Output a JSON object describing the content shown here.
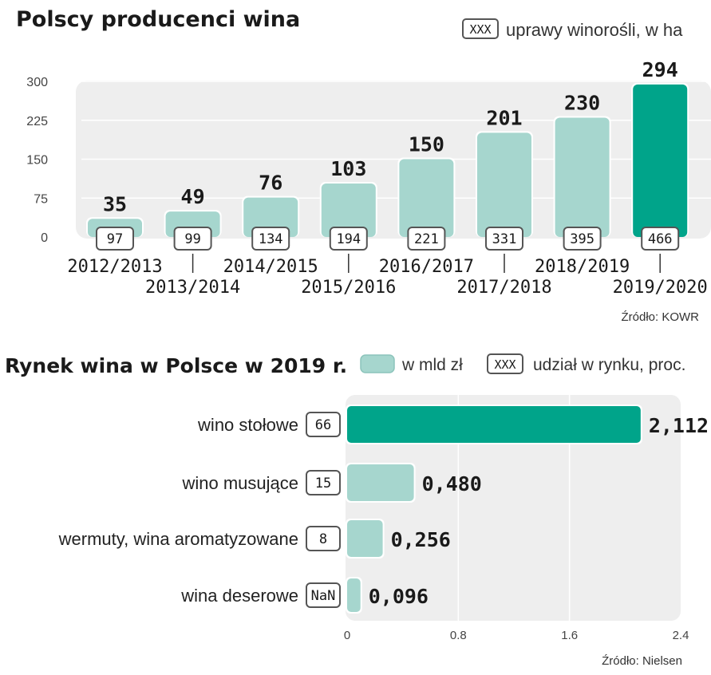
{
  "colors": {
    "bar": "#a6d6ce",
    "bar_highlight": "#00a48a",
    "panel": "#eeeeee",
    "box_border": "#555555"
  },
  "chart_data": [
    {
      "type": "bar",
      "title": "Polscy producenci wina",
      "legend": {
        "box_label": "XXX",
        "label": "uprawy winorośli, w ha"
      },
      "categories": [
        "2012/2013",
        "2013/2014",
        "2014/2015",
        "2015/2016",
        "2016/2017",
        "2017/2018",
        "2018/2019",
        "2019/2020"
      ],
      "values": [
        35,
        49,
        76,
        103,
        150,
        201,
        230,
        294
      ],
      "secondary_values": [
        97,
        99,
        134,
        194,
        221,
        331,
        395,
        466
      ],
      "highlight_index": 7,
      "yticks": [
        0,
        75,
        150,
        225,
        300
      ],
      "ylim": [
        0,
        300
      ],
      "xlabel": "",
      "ylabel": "",
      "source": "Źródło: KOWR"
    },
    {
      "type": "bar",
      "orientation": "horizontal",
      "title": "Rynek wina w Polsce w 2019 r.",
      "legend": {
        "swatch_label": "w mld zł",
        "box_label": "XXX",
        "label": "udział  w rynku, proc."
      },
      "categories": [
        "wino stołowe",
        "wino musujące",
        "wermuty, wina aromatyzowane",
        "wina deserowe"
      ],
      "values": [
        2.112,
        0.48,
        0.256,
        0.096
      ],
      "value_labels": [
        "2,112",
        "0,480",
        "0,256",
        "0,096"
      ],
      "shares": [
        "66",
        "15",
        "8",
        "NaN"
      ],
      "highlight_index": 0,
      "xticks": [
        0,
        0.8,
        1.6,
        2.4
      ],
      "xtick_labels": [
        "0",
        "0.8",
        "1.6",
        "2.4"
      ],
      "xlim": [
        0,
        2.4
      ],
      "source": "Źródło: Nielsen"
    }
  ]
}
